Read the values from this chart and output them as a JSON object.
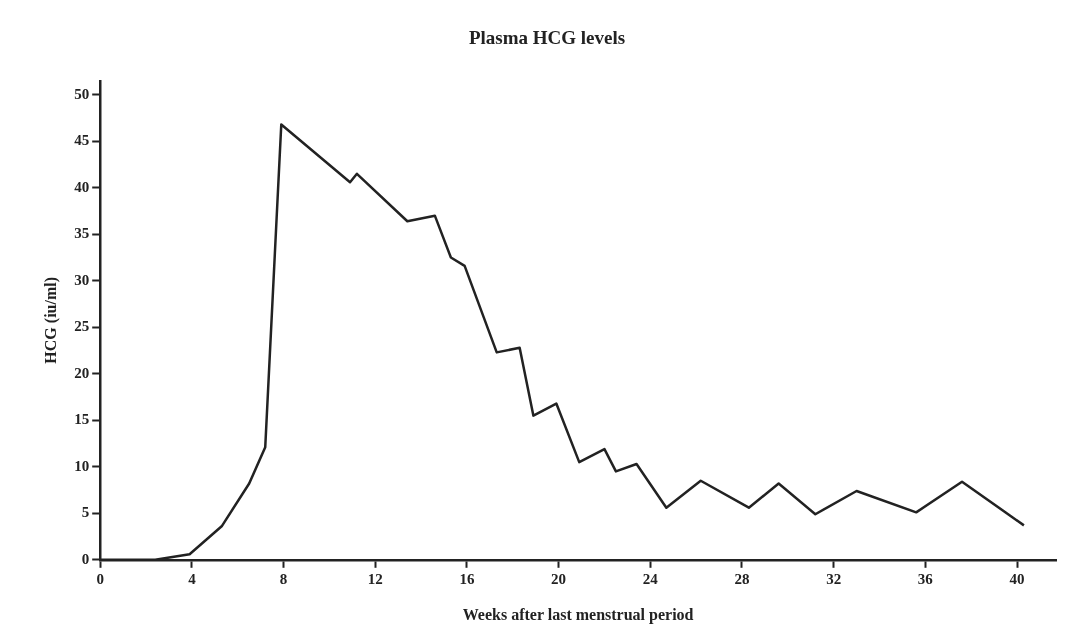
{
  "chart_data": {
    "type": "line",
    "title": "Plasma HCG levels",
    "xlabel": "Weeks after last menstrual period",
    "ylabel": "HCG (iu/ml)",
    "x": [
      0,
      2.4,
      3.9,
      5.3,
      6.5,
      7.2,
      7.9,
      10.9,
      11.2,
      13.4,
      14.6,
      15.3,
      15.9,
      17.3,
      18.3,
      18.9,
      19.9,
      20.9,
      22.0,
      22.5,
      23.4,
      24.7,
      26.2,
      28.3,
      29.6,
      31.2,
      33.0,
      35.6,
      37.6,
      40.3
    ],
    "series": [
      {
        "color": "#222222",
        "values": [
          0,
          0,
          0.6,
          3.6,
          8.2,
          12.1,
          46.8,
          40.6,
          41.5,
          36.4,
          37,
          32.5,
          31.6,
          22.3,
          22.8,
          15.5,
          16.8,
          10.5,
          11.9,
          9.5,
          10.3,
          5.6,
          8.5,
          5.6,
          8.2,
          4.9,
          7.4,
          5.1,
          8.4,
          3.7
        ]
      }
    ],
    "xlim": [
      0,
      41.7
    ],
    "xticks": [
      0,
      4,
      8,
      12,
      16,
      20,
      24,
      28,
      32,
      36,
      40
    ],
    "ylim": [
      0,
      51.5
    ],
    "yticks": [
      0,
      5,
      10,
      15,
      20,
      25,
      30,
      35,
      40,
      45,
      50
    ],
    "grid": false,
    "legend": false,
    "marker": "none",
    "line_style": "solid"
  }
}
